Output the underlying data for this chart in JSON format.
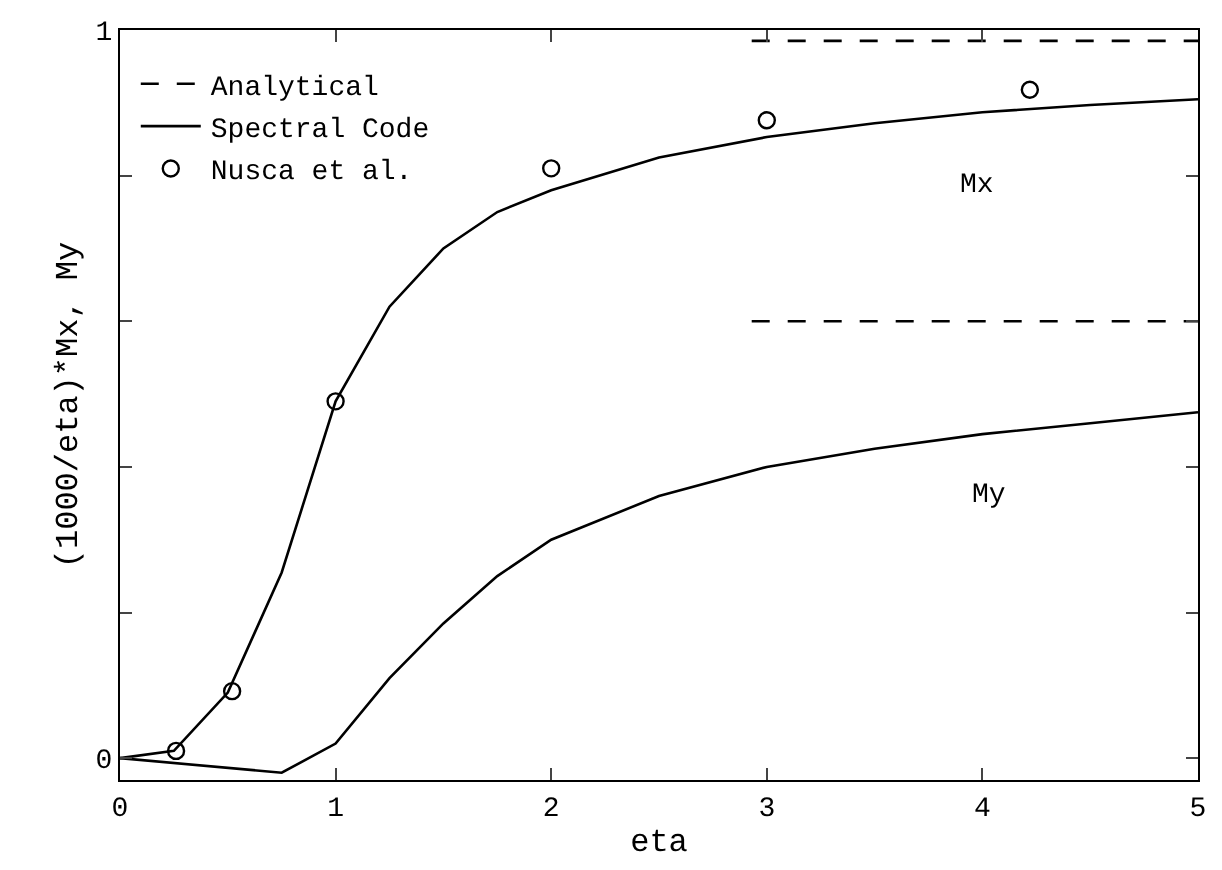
{
  "chart_data": {
    "type": "line",
    "xlabel": "eta",
    "ylabel": "(1000/eta)*Mx, My",
    "xlim": [
      0,
      5
    ],
    "xticks": [
      0,
      1,
      2,
      3,
      4,
      5
    ],
    "ylim": [
      -0.03,
      1
    ],
    "yticks": [
      0,
      {
        "value": 0.2,
        "label": null
      },
      {
        "value": 0.4,
        "label": null
      },
      {
        "value": 0.6,
        "label": null
      },
      {
        "value": 0.8,
        "label": null
      },
      1
    ],
    "legend": "top left",
    "series": [
      {
        "name": "Analytical",
        "line_style": "dashed",
        "color": "#000000",
        "x": [
          2.93,
          5
        ],
        "values": [
          0.985,
          0.985
        ]
      },
      {
        "line_style": "dashed",
        "color": "#000000",
        "x": [
          2.93,
          5
        ],
        "values": [
          0.6,
          0.6
        ]
      },
      {
        "name": "Spectral Code",
        "line_style": "solid",
        "color": "#000000",
        "x": [
          0,
          0.25,
          0.5,
          0.75,
          1,
          1.25,
          1.5,
          1.75,
          2,
          2.5,
          3,
          3.5,
          4,
          4.5,
          5
        ],
        "values": [
          0,
          0.01,
          0.09,
          0.255,
          0.49,
          0.62,
          0.7,
          0.75,
          0.78,
          0.825,
          0.853,
          0.872,
          0.887,
          0.897,
          0.905
        ]
      },
      {
        "line_style": "solid",
        "color": "#000000",
        "x": [
          0,
          0.75,
          1,
          1.25,
          1.5,
          1.75,
          2,
          2.5,
          3,
          3.5,
          4,
          4.5,
          5
        ],
        "values": [
          0,
          -0.02,
          0.02,
          0.11,
          0.185,
          0.25,
          0.3,
          0.36,
          0.4,
          0.425,
          0.445,
          0.46,
          0.475
        ]
      },
      {
        "name": "Nusca et al.",
        "type": "scatter",
        "marker": "circle",
        "color": "#000000",
        "x": [
          0.26,
          0.52,
          1,
          2,
          3,
          4.22
        ],
        "values": [
          0.01,
          0.092,
          0.49,
          0.81,
          0.876,
          0.918
        ]
      }
    ],
    "annotations": [
      "Mx",
      "My"
    ]
  }
}
